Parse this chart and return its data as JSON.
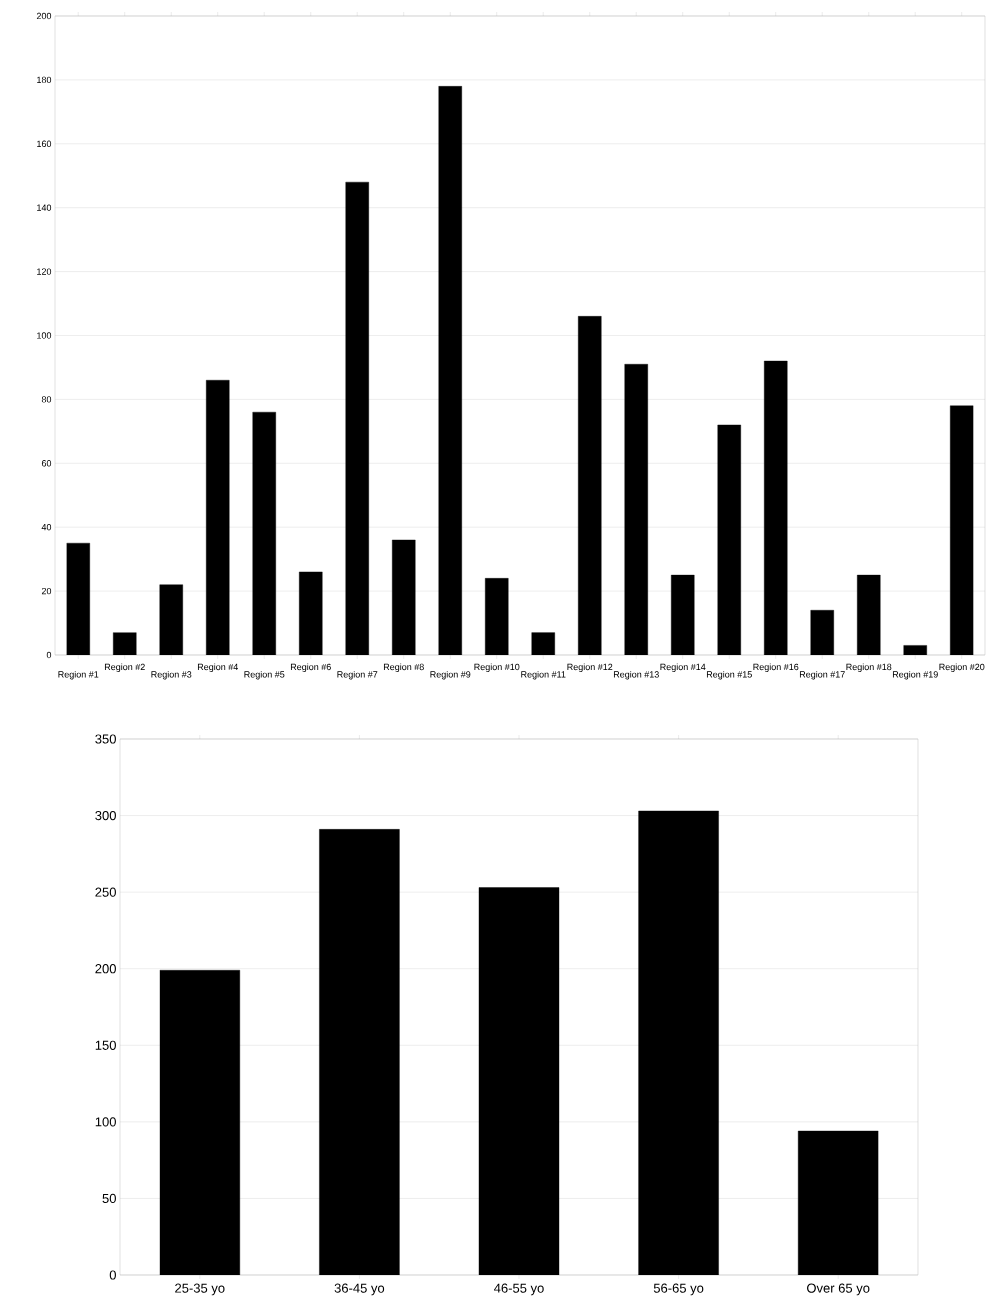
{
  "chart_data": [
    {
      "type": "bar",
      "categories": [
        "Region #1",
        "Region #2",
        "Region #3",
        "Region #4",
        "Region #5",
        "Region #6",
        "Region #7",
        "Region #8",
        "Region #9",
        "Region #10",
        "Region #11",
        "Region #12",
        "Region #13",
        "Region #14",
        "Region #15",
        "Region #16",
        "Region #17",
        "Region #18",
        "Region #19",
        "Region #20"
      ],
      "values": [
        35,
        7,
        22,
        86,
        76,
        26,
        148,
        36,
        178,
        24,
        7,
        106,
        91,
        25,
        72,
        92,
        14,
        25,
        3,
        78
      ],
      "color": "#000000",
      "ylim": [
        0,
        200
      ],
      "yticks": [
        0,
        20,
        40,
        60,
        80,
        100,
        120,
        140,
        160,
        180,
        200
      ],
      "grid": "y"
    },
    {
      "type": "bar",
      "categories": [
        "25-35 yo",
        "36-45 yo",
        "46-55 yo",
        "56-65 yo",
        "Over 65 yo"
      ],
      "values": [
        199,
        291,
        253,
        303,
        94
      ],
      "color": "#000000",
      "ylim": [
        0,
        350
      ],
      "yticks": [
        0,
        50,
        100,
        150,
        200,
        250,
        300,
        350
      ],
      "grid": "y"
    }
  ]
}
